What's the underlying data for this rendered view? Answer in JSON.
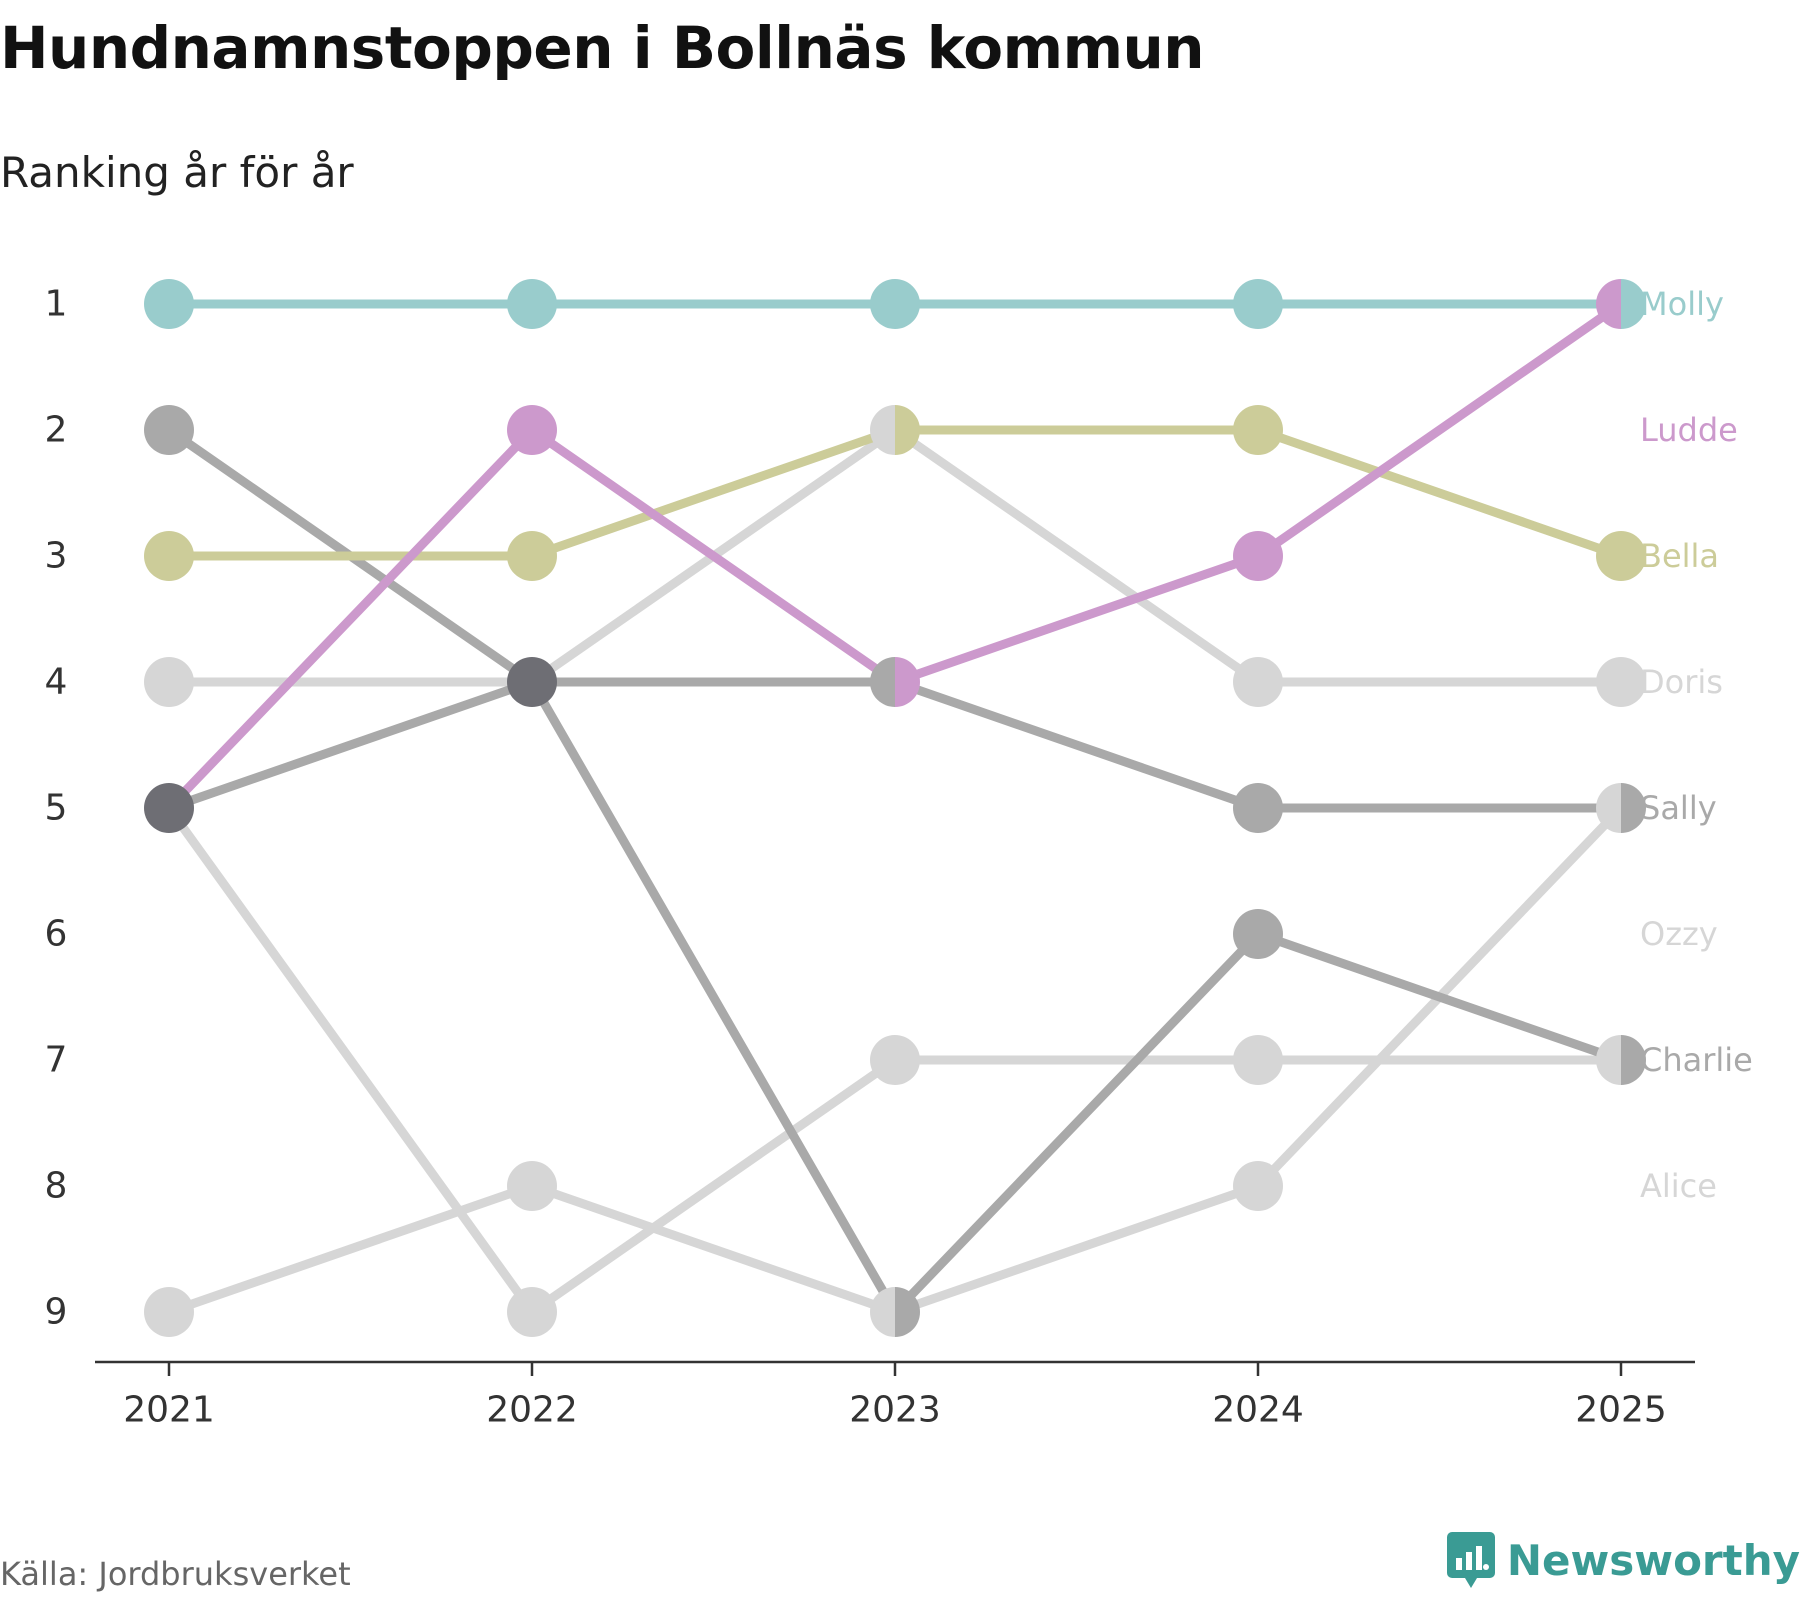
{
  "header": {
    "title": "Hundnamnstoppen i Bollnäs kommun",
    "subtitle": "Ranking år för år"
  },
  "footer": {
    "source": "Källa: Jordbruksverket",
    "brand": "Newsworthy",
    "brand_color": "#3a9b94"
  },
  "chart_data": {
    "type": "line",
    "x": [
      "2021",
      "2022",
      "2023",
      "2024",
      "2025"
    ],
    "y_ticks": [
      1,
      2,
      3,
      4,
      5,
      6,
      7,
      8,
      9
    ],
    "ylim": [
      1,
      9
    ],
    "y_reversed": true,
    "grid": false,
    "legend": "labels at right end",
    "series": [
      {
        "name": "Alice",
        "color": "#d6d6d6",
        "values": [
          5,
          9,
          7,
          7,
          7
        ]
      },
      {
        "name": "Ozzy",
        "color": "#d6d6d6",
        "values": [
          9,
          8,
          9,
          8,
          5
        ]
      },
      {
        "name": "Doris",
        "color": "#d6d6d6",
        "values": [
          4,
          4,
          2,
          4,
          4
        ]
      },
      {
        "name": "Charlie",
        "color": "#a9a9a9",
        "values": [
          5,
          4,
          9,
          6,
          7
        ]
      },
      {
        "name": "Sally",
        "color": "#a9a9a9",
        "values": [
          2,
          4,
          4,
          5,
          5
        ]
      },
      {
        "name": "Bella",
        "color": "#cccc99",
        "values": [
          3,
          3,
          2,
          2,
          3
        ]
      },
      {
        "name": "Ludde",
        "color": "#cc99cc",
        "values": [
          5,
          2,
          4,
          3,
          1
        ]
      },
      {
        "name": "Molly",
        "color": "#99cccc",
        "values": [
          1,
          1,
          1,
          1,
          1
        ]
      }
    ],
    "overlap_color": "#6e6e74"
  }
}
